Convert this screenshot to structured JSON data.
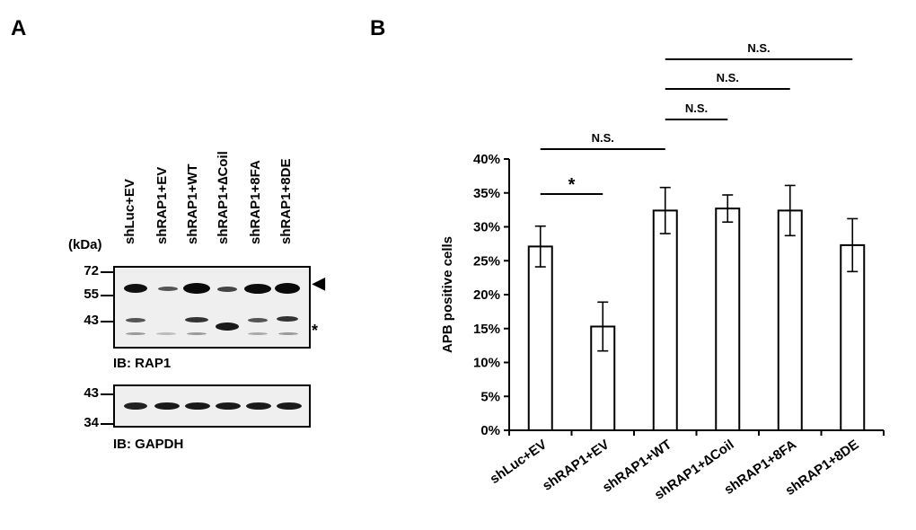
{
  "panels": {
    "a": "A",
    "b": "B"
  },
  "blot": {
    "kda_label": "(kDa)",
    "lanes": [
      "shLuc+EV",
      "shRAP1+EV",
      "shRAP1+WT",
      "shRAP1+∆Coil",
      "shRAP1+8FA",
      "shRAP1+8DE"
    ],
    "rap1": {
      "markers": [
        "72",
        "55",
        "43"
      ],
      "caption": "IB: RAP1",
      "arrowhead": "◀",
      "asterisk": "*"
    },
    "gapdh": {
      "markers": [
        "43",
        "34"
      ],
      "caption": "IB: GAPDH"
    }
  },
  "chart_data": {
    "type": "bar",
    "categories": [
      "shLuc+EV",
      "shRAP1+EV",
      "shRAP1+WT",
      "shRAP1+∆Coil",
      "shRAP1+8FA",
      "shRAP1+8DE"
    ],
    "values": [
      0.271,
      0.153,
      0.324,
      0.327,
      0.324,
      0.273
    ],
    "errors": [
      0.03,
      0.036,
      0.034,
      0.02,
      0.037,
      0.039
    ],
    "ylabel": "APB positive cells",
    "ylim": [
      0,
      0.4
    ],
    "yticks": [
      "0%",
      "5%",
      "10%",
      "15%",
      "20%",
      "25%",
      "30%",
      "35%",
      "40%"
    ],
    "grid": false,
    "significance": [
      {
        "from": 0,
        "to": 1,
        "label": "*"
      },
      {
        "from": 0,
        "to": 2,
        "label": "N.S."
      },
      {
        "from": 2,
        "to": 3,
        "label": "N.S."
      },
      {
        "from": 2,
        "to": 4,
        "label": "N.S."
      },
      {
        "from": 2,
        "to": 5,
        "label": "N.S."
      }
    ]
  }
}
